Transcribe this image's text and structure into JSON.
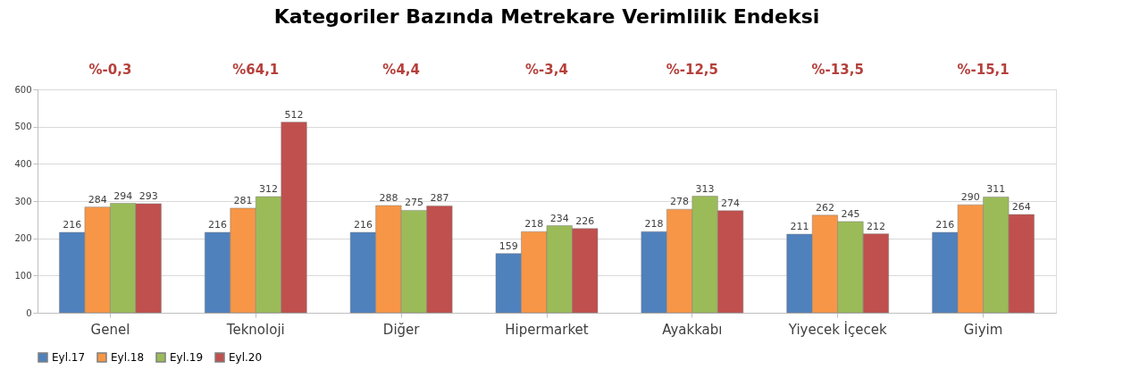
{
  "chart_data": {
    "type": "bar",
    "title": "Kategoriler Bazında Metrekare Verimlilik Endeksi",
    "categories": [
      "Genel",
      "Teknoloji",
      "Diğer",
      "Hipermarket",
      "Ayakkabı",
      "Yiyecek İçecek",
      "Giyim"
    ],
    "series": [
      {
        "name": "Eyl.17",
        "color": "#4f81bd",
        "values": [
          216,
          216,
          216,
          159,
          218,
          211,
          216
        ]
      },
      {
        "name": "Eyl.18",
        "color": "#f79646",
        "values": [
          284,
          281,
          288,
          218,
          278,
          262,
          290
        ]
      },
      {
        "name": "Eyl.19",
        "color": "#9bbb59",
        "values": [
          294,
          312,
          275,
          234,
          313,
          245,
          311
        ]
      },
      {
        "name": "Eyl.20",
        "color": "#c0504d",
        "values": [
          293,
          512,
          287,
          226,
          274,
          212,
          264
        ]
      }
    ],
    "annotations": [
      "%-0,3",
      "%64,1",
      "%4,4",
      "%-3,4",
      "%-12,5",
      "%-13,5",
      "%-15,1"
    ],
    "ylim": [
      0,
      600
    ],
    "yticks": [
      0,
      100,
      200,
      300,
      400,
      500,
      600
    ],
    "grid": "y",
    "legend": "bottom",
    "data_labels": true
  }
}
